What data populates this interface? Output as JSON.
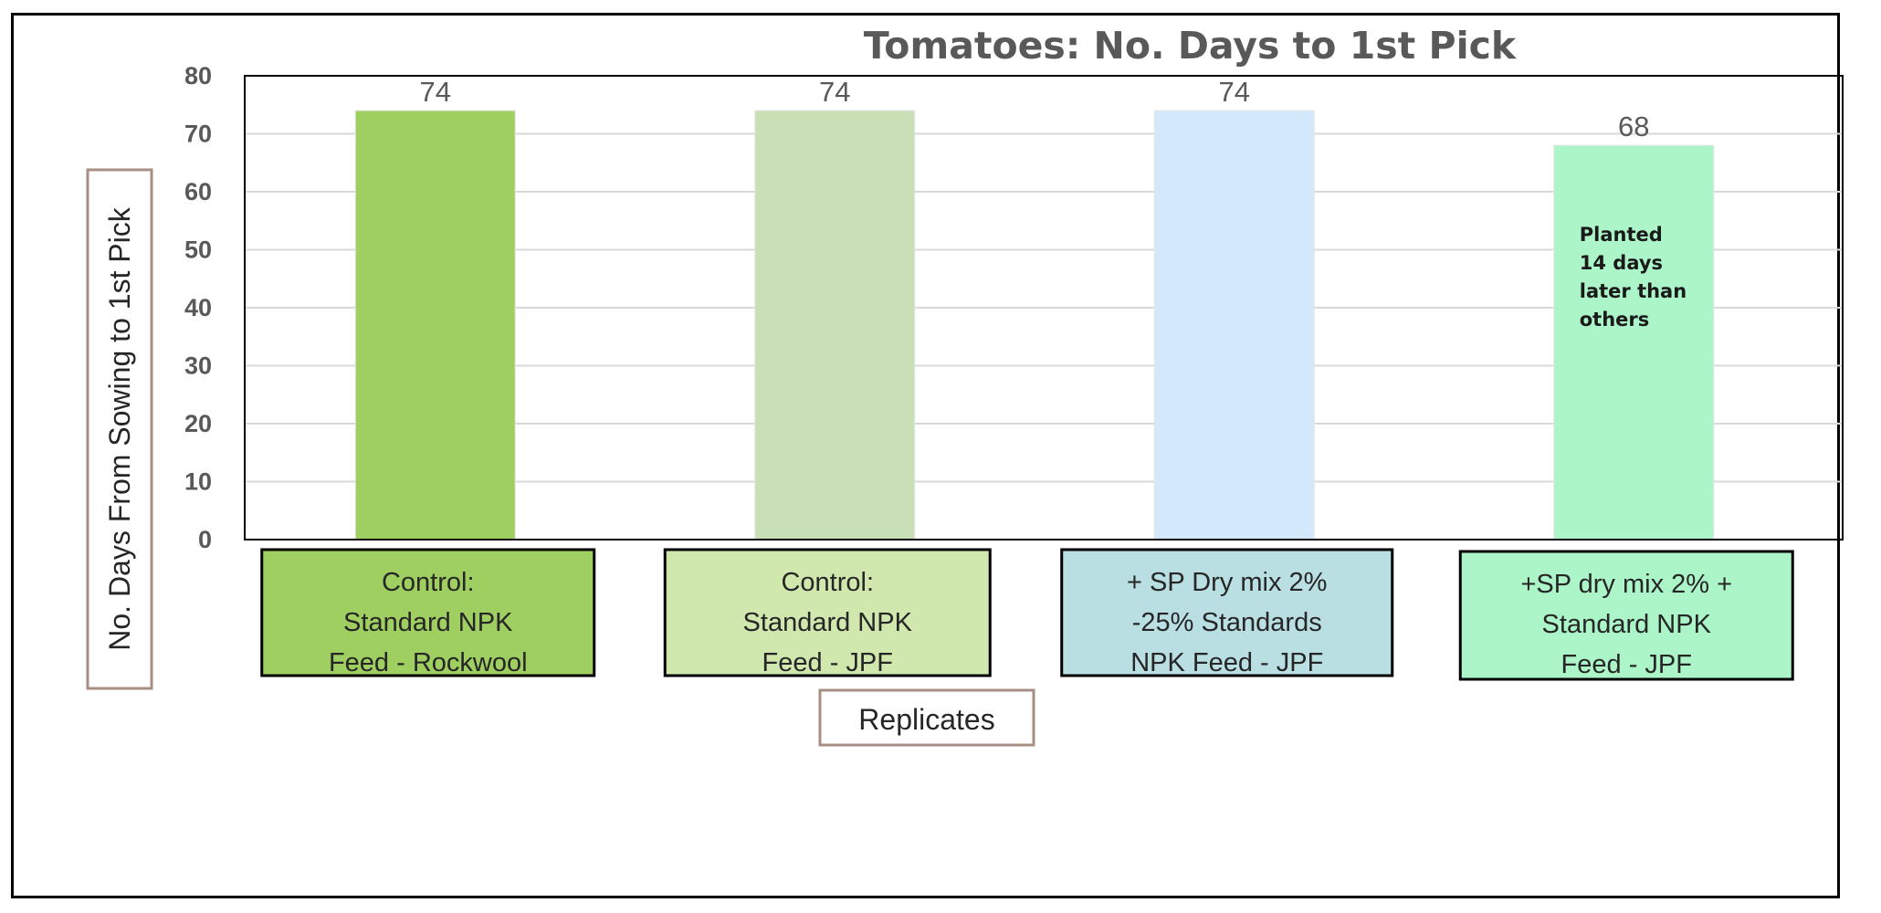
{
  "chart_data": {
    "type": "bar",
    "title": "Tomatoes: No. Days to 1st Pick",
    "xlabel": "Replicates",
    "ylabel": "No. Days From Sowing to 1st Pick",
    "ylim": [
      0,
      80
    ],
    "yticks": [
      0,
      10,
      20,
      30,
      40,
      50,
      60,
      70,
      80
    ],
    "grid": true,
    "legend": "none",
    "categories": [
      [
        "Control:",
        "Standard NPK",
        "Feed - Rockwool"
      ],
      [
        "Control:",
        "Standard NPK",
        "Feed  - JPF"
      ],
      [
        "+ SP Dry mix 2%",
        "-25% Standards",
        "NPK  Feed - JPF"
      ],
      [
        "+SP dry mix 2% +",
        "Standard NPK",
        "Feed - JPF"
      ]
    ],
    "values": [
      74,
      74,
      74,
      68
    ],
    "data_labels": [
      "74",
      "74",
      "74",
      "68"
    ],
    "bar_colors": [
      "#9fcf61",
      "#c9e0b6",
      "#d3e8fa",
      "#acf5c8"
    ],
    "category_box_colors": [
      "#9fcf61",
      "#d0e8ad",
      "#b9dfe2",
      "#acf5c8"
    ],
    "annotations": [
      {
        "category_index": 3,
        "lines": [
          "Planted",
          "14 days",
          "later than",
          "others"
        ]
      }
    ]
  }
}
